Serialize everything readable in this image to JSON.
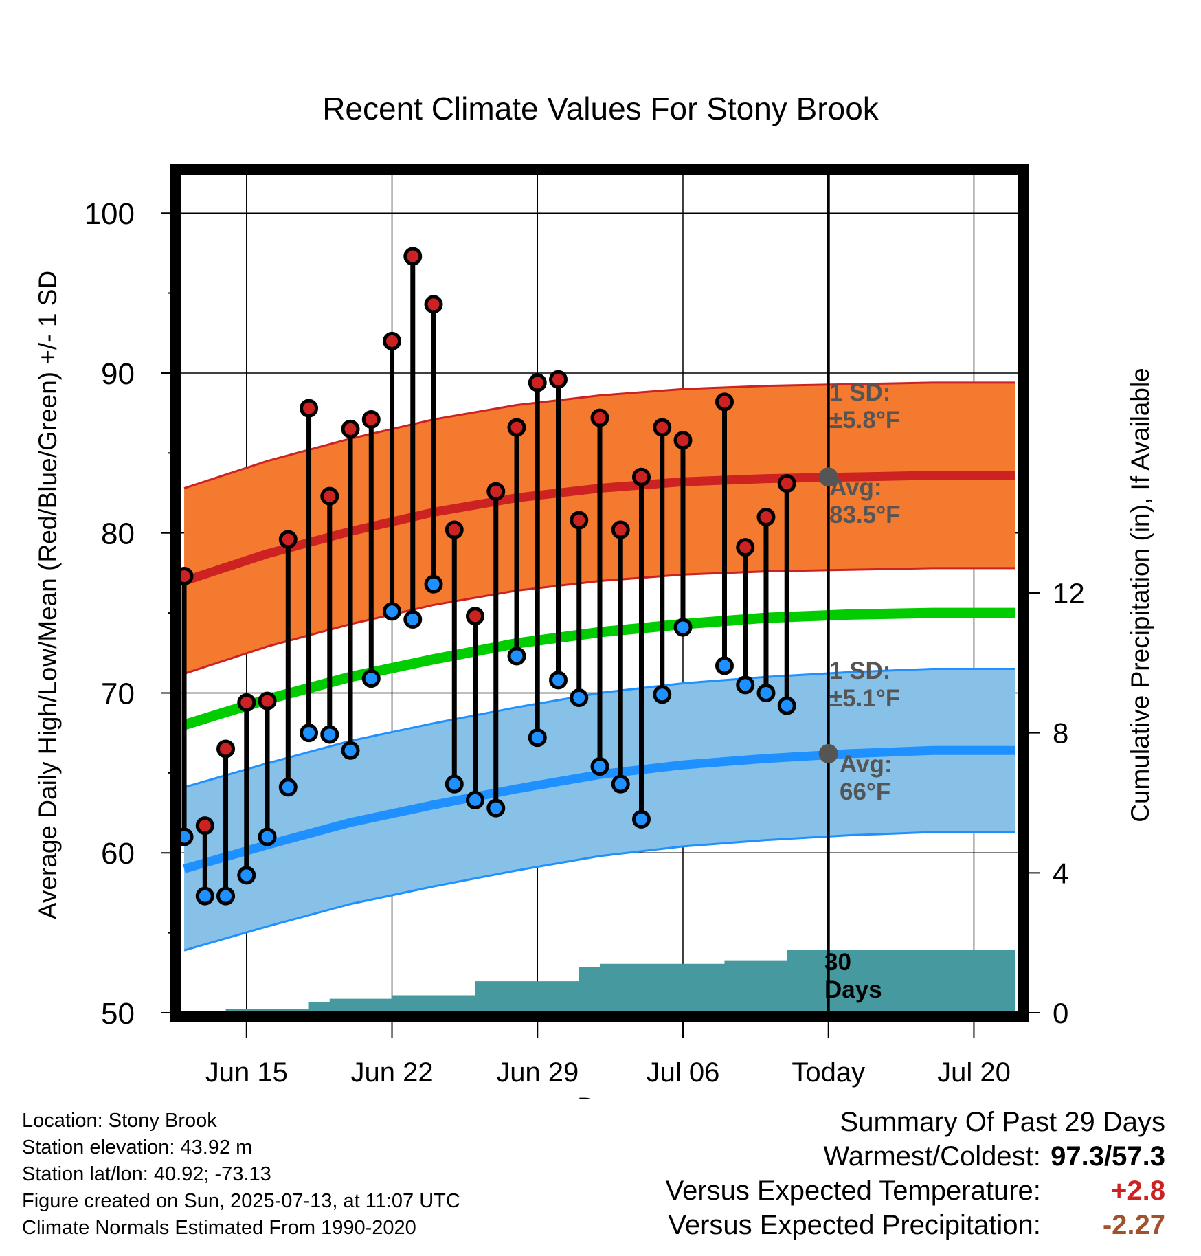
{
  "chart_data": {
    "type": "line",
    "title": "Recent Climate Values For Stony Brook",
    "xlabel": "Day",
    "ylabel": "Average Daily High/Low/Mean (Red/Blue/Green) +/- 1 SD",
    "ylabel_right": "Cumulative Precipitation (in), If Available",
    "x_ticks": [
      {
        "day": 15,
        "label": "Jun 15"
      },
      {
        "day": 22,
        "label": "Jun 22"
      },
      {
        "day": 29,
        "label": "Jun 29"
      },
      {
        "day": 36,
        "label": "Jul 06"
      },
      {
        "day": 43,
        "label": "Today"
      },
      {
        "day": 50,
        "label": "Jul 20"
      }
    ],
    "xlim": [
      11.8,
      52.2
    ],
    "ylim": [
      50,
      102.5
    ],
    "y_ticks": [
      50,
      60,
      70,
      80,
      90,
      100
    ],
    "y2_ticks": [
      0,
      4,
      8,
      12
    ],
    "y2lim": [
      0,
      24
    ],
    "today_day": 43,
    "daily_highs": [
      {
        "date": "Jun 12",
        "value": 77.3
      },
      {
        "date": "Jun 13",
        "value": 61.7
      },
      {
        "date": "Jun 14",
        "value": 66.5
      },
      {
        "date": "Jun 15",
        "value": 69.4
      },
      {
        "date": "Jun 16",
        "value": 69.5
      },
      {
        "date": "Jun 17",
        "value": 79.6
      },
      {
        "date": "Jun 18",
        "value": 87.8
      },
      {
        "date": "Jun 19",
        "value": 82.3
      },
      {
        "date": "Jun 20",
        "value": 86.5
      },
      {
        "date": "Jun 21",
        "value": 87.1
      },
      {
        "date": "Jun 22",
        "value": 92.0
      },
      {
        "date": "Jun 23",
        "value": 97.3
      },
      {
        "date": "Jun 24",
        "value": 94.3
      },
      {
        "date": "Jun 25",
        "value": 80.2
      },
      {
        "date": "Jun 26",
        "value": 74.8
      },
      {
        "date": "Jun 27",
        "value": 82.6
      },
      {
        "date": "Jun 28",
        "value": 86.6
      },
      {
        "date": "Jun 29",
        "value": 89.4
      },
      {
        "date": "Jun 30",
        "value": 89.6
      },
      {
        "date": "Jul 01",
        "value": 80.8
      },
      {
        "date": "Jul 02",
        "value": 87.2
      },
      {
        "date": "Jul 03",
        "value": 80.2
      },
      {
        "date": "Jul 04",
        "value": 83.5
      },
      {
        "date": "Jul 05",
        "value": 86.6
      },
      {
        "date": "Jul 06",
        "value": 85.8
      },
      {
        "date": "Jul 08",
        "value": 88.2
      },
      {
        "date": "Jul 09",
        "value": 79.1
      },
      {
        "date": "Jul 10",
        "value": 81.0
      },
      {
        "date": "Jul 11",
        "value": 83.1
      }
    ],
    "daily_lows": [
      {
        "date": "Jun 12",
        "value": 61.0
      },
      {
        "date": "Jun 13",
        "value": 57.3
      },
      {
        "date": "Jun 14",
        "value": 57.3
      },
      {
        "date": "Jun 15",
        "value": 58.6
      },
      {
        "date": "Jun 16",
        "value": 61.0
      },
      {
        "date": "Jun 17",
        "value": 64.1
      },
      {
        "date": "Jun 18",
        "value": 67.5
      },
      {
        "date": "Jun 19",
        "value": 67.4
      },
      {
        "date": "Jun 20",
        "value": 66.4
      },
      {
        "date": "Jun 21",
        "value": 70.9
      },
      {
        "date": "Jun 22",
        "value": 75.1
      },
      {
        "date": "Jun 23",
        "value": 74.6
      },
      {
        "date": "Jun 24",
        "value": 76.8
      },
      {
        "date": "Jun 25",
        "value": 64.3
      },
      {
        "date": "Jun 26",
        "value": 63.3
      },
      {
        "date": "Jun 27",
        "value": 62.8
      },
      {
        "date": "Jun 28",
        "value": 72.3
      },
      {
        "date": "Jun 29",
        "value": 67.2
      },
      {
        "date": "Jun 30",
        "value": 70.8
      },
      {
        "date": "Jul 01",
        "value": 69.7
      },
      {
        "date": "Jul 02",
        "value": 65.4
      },
      {
        "date": "Jul 03",
        "value": 64.3
      },
      {
        "date": "Jul 04",
        "value": 62.1
      },
      {
        "date": "Jul 05",
        "value": 69.9
      },
      {
        "date": "Jul 06",
        "value": 74.1
      },
      {
        "date": "Jul 08",
        "value": 71.7
      },
      {
        "date": "Jul 09",
        "value": 70.5
      },
      {
        "date": "Jul 10",
        "value": 70.0
      },
      {
        "date": "Jul 11",
        "value": 69.2
      }
    ],
    "normal_high": {
      "x": [
        12,
        16,
        20,
        24,
        28,
        32,
        36,
        40,
        44,
        48,
        52
      ],
      "mean": [
        77.0,
        78.7,
        80.1,
        81.3,
        82.2,
        82.8,
        83.2,
        83.4,
        83.5,
        83.6,
        83.6
      ],
      "sd": 5.8
    },
    "normal_low": {
      "x": [
        12,
        16,
        20,
        24,
        28,
        32,
        36,
        40,
        44,
        48,
        52
      ],
      "mean": [
        59.0,
        60.5,
        61.9,
        63.0,
        64.0,
        64.9,
        65.5,
        65.9,
        66.2,
        66.4,
        66.4
      ],
      "sd": 5.1
    },
    "normal_mean": {
      "x": [
        12,
        16,
        20,
        24,
        28,
        32,
        36,
        40,
        44,
        48,
        52
      ],
      "values": [
        68.0,
        69.6,
        71.0,
        72.1,
        73.1,
        73.8,
        74.3,
        74.7,
        74.9,
        75.0,
        75.0
      ]
    },
    "cumulative_precip": {
      "x": [
        12,
        13,
        14,
        15,
        16,
        17,
        18,
        19,
        20,
        21,
        22,
        23,
        24,
        25,
        26,
        27,
        28,
        29,
        30,
        31,
        32,
        33,
        34,
        35,
        36,
        37,
        38,
        39,
        40,
        41,
        42,
        43,
        52
      ],
      "values": [
        0.0,
        0.0,
        0.1,
        0.1,
        0.1,
        0.1,
        0.3,
        0.4,
        0.4,
        0.4,
        0.5,
        0.5,
        0.5,
        0.5,
        0.9,
        0.9,
        0.9,
        0.9,
        0.9,
        1.3,
        1.4,
        1.4,
        1.4,
        1.4,
        1.4,
        1.4,
        1.5,
        1.5,
        1.5,
        1.8,
        1.8,
        1.8,
        1.8
      ]
    },
    "annotations": {
      "high_sd": [
        "1 SD:",
        "±5.8°F"
      ],
      "high_avg": [
        "Avg:",
        "83.5°F"
      ],
      "low_sd": [
        "1 SD:",
        "±5.1°F"
      ],
      "low_avg": [
        "Avg:",
        "66°F"
      ],
      "precip_days": [
        "30",
        "Days"
      ]
    },
    "colors": {
      "high_band": "#f47a30",
      "high_line": "#cc2222",
      "low_band": "#87c1e8",
      "low_line": "#1e90ff",
      "mean_line": "#00cc00",
      "precip": "#4799a0",
      "high_marker": "#cc2222",
      "low_marker": "#1e90ff",
      "annotation": "#555555"
    }
  },
  "footer": {
    "location": "Location: Stony Brook",
    "elevation": "Station elevation: 43.92 m",
    "latlon": "Station lat/lon: 40.92; -73.13",
    "created": "Figure created on Sun, 2025-07-13, at 11:07 UTC",
    "normals": "Climate Normals Estimated From 1990-2020"
  },
  "summary": {
    "title": "Summary Of Past 29 Days",
    "warmest_label": "Warmest/Coldest:",
    "warmest_value": "97.3/57.3",
    "temp_label": "Versus Expected Temperature:",
    "temp_value": "+2.8",
    "precip_label": "Versus Expected Precipitation:",
    "precip_value": "-2.27"
  }
}
